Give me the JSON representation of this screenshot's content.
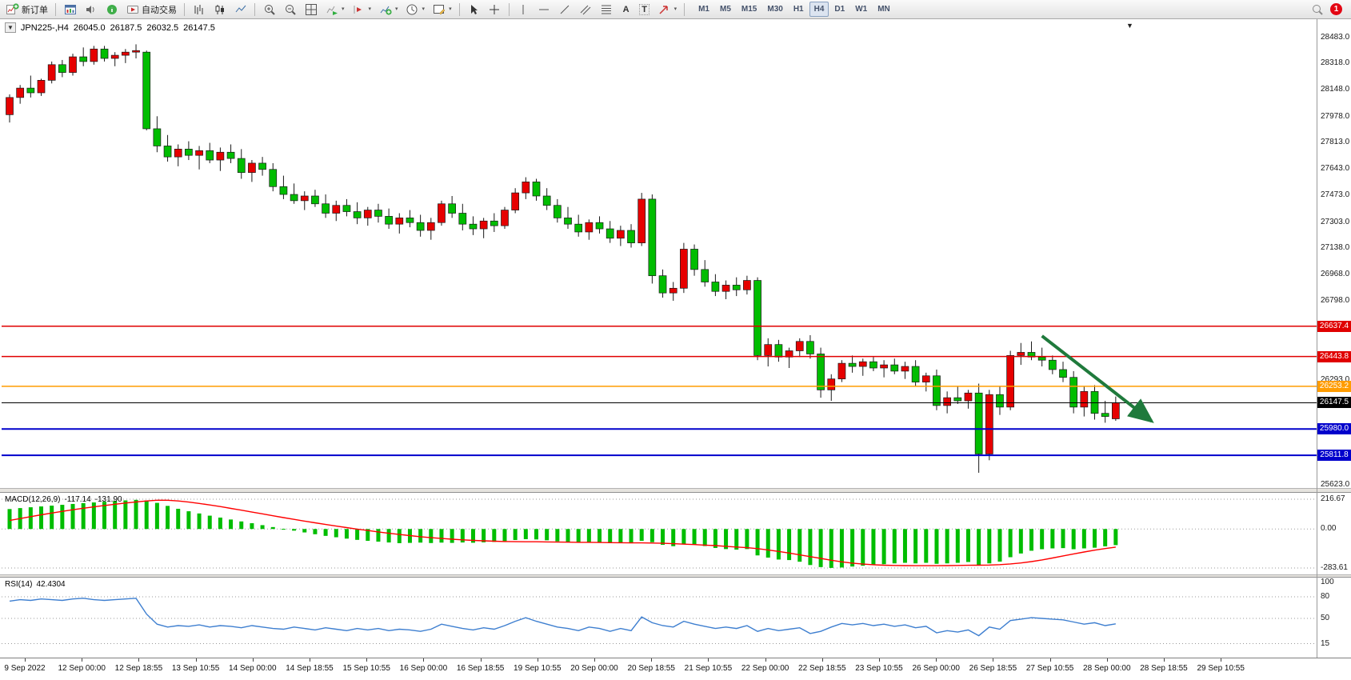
{
  "icons": {
    "caret_down": "▾",
    "dropdown_triangle": "▼"
  },
  "toolbar": {
    "buttons": {
      "new_order": "新订单",
      "autotrading": "自动交易",
      "text_tool": "A",
      "label_tool": "T"
    },
    "timeframes": [
      {
        "label": "M1",
        "active": false
      },
      {
        "label": "M5",
        "active": false
      },
      {
        "label": "M15",
        "active": false
      },
      {
        "label": "M30",
        "active": false
      },
      {
        "label": "H1",
        "active": false
      },
      {
        "label": "H4",
        "active": true
      },
      {
        "label": "D1",
        "active": false
      },
      {
        "label": "W1",
        "active": false
      },
      {
        "label": "MN",
        "active": false
      }
    ],
    "notification_count": "1"
  },
  "chart_header": {
    "symbol": "JPN225-,H4",
    "open": "26045.0",
    "high": "26187.5",
    "low": "26032.5",
    "close": "26147.5"
  },
  "chart_data": {
    "type": "candlestick",
    "symbol": "JPN225-",
    "timeframe": "H4",
    "y_axis": {
      "min": 25623.0,
      "max": 28483.0,
      "ticks": [
        "28483.0",
        "28318.0",
        "28148.0",
        "27978.0",
        "27813.0",
        "27643.0",
        "27473.0",
        "27303.0",
        "27138.0",
        "26968.0",
        "26798.0",
        "26293.0",
        "25623.0"
      ]
    },
    "x_labels": [
      "9 Sep 2022",
      "12 Sep 00:00",
      "12 Sep 18:55",
      "13 Sep 10:55",
      "14 Sep 00:00",
      "14 Sep 18:55",
      "15 Sep 10:55",
      "16 Sep 00:00",
      "16 Sep 18:55",
      "19 Sep 10:55",
      "20 Sep 00:00",
      "20 Sep 18:55",
      "21 Sep 10:55",
      "22 Sep 00:00",
      "22 Sep 18:55",
      "23 Sep 10:55",
      "26 Sep 00:00",
      "26 Sep 18:55",
      "27 Sep 10:55",
      "28 Sep 00:00",
      "28 Sep 18:55",
      "29 Sep 10:55"
    ],
    "colors": {
      "up": "#e60000",
      "down": "#00bd00",
      "wick": "#1a1a1a",
      "candle_border": "#1a1a1a",
      "macd_hist": "#00bd00",
      "macd_signal": "#ff0000",
      "rsi_line": "#3e7fd0",
      "arrow": "#1f7a3c"
    },
    "candles": [
      [
        27990,
        28120,
        27940,
        28100
      ],
      [
        28100,
        28180,
        28060,
        28160
      ],
      [
        28160,
        28240,
        28100,
        28130
      ],
      [
        28130,
        28220,
        28110,
        28210
      ],
      [
        28210,
        28330,
        28190,
        28310
      ],
      [
        28310,
        28340,
        28230,
        28260
      ],
      [
        28260,
        28380,
        28240,
        28360
      ],
      [
        28360,
        28420,
        28300,
        28330
      ],
      [
        28330,
        28430,
        28310,
        28410
      ],
      [
        28410,
        28430,
        28330,
        28350
      ],
      [
        28350,
        28390,
        28300,
        28370
      ],
      [
        28370,
        28410,
        28320,
        28390
      ],
      [
        28390,
        28440,
        28350,
        28400
      ],
      [
        28390,
        28400,
        27890,
        27900
      ],
      [
        27900,
        27980,
        27750,
        27790
      ],
      [
        27790,
        27860,
        27690,
        27720
      ],
      [
        27720,
        27800,
        27660,
        27770
      ],
      [
        27770,
        27820,
        27700,
        27730
      ],
      [
        27730,
        27790,
        27640,
        27760
      ],
      [
        27760,
        27810,
        27680,
        27700
      ],
      [
        27700,
        27780,
        27630,
        27750
      ],
      [
        27750,
        27800,
        27680,
        27710
      ],
      [
        27710,
        27770,
        27580,
        27620
      ],
      [
        27620,
        27700,
        27560,
        27680
      ],
      [
        27680,
        27720,
        27600,
        27640
      ],
      [
        27640,
        27680,
        27500,
        27530
      ],
      [
        27530,
        27600,
        27450,
        27480
      ],
      [
        27480,
        27550,
        27420,
        27440
      ],
      [
        27440,
        27500,
        27380,
        27470
      ],
      [
        27470,
        27510,
        27400,
        27420
      ],
      [
        27420,
        27480,
        27330,
        27360
      ],
      [
        27360,
        27440,
        27310,
        27410
      ],
      [
        27410,
        27450,
        27340,
        27370
      ],
      [
        27370,
        27430,
        27290,
        27330
      ],
      [
        27330,
        27400,
        27280,
        27380
      ],
      [
        27380,
        27420,
        27300,
        27340
      ],
      [
        27340,
        27390,
        27260,
        27290
      ],
      [
        27290,
        27360,
        27230,
        27330
      ],
      [
        27330,
        27380,
        27270,
        27300
      ],
      [
        27300,
        27350,
        27210,
        27250
      ],
      [
        27250,
        27330,
        27190,
        27300
      ],
      [
        27300,
        27440,
        27280,
        27420
      ],
      [
        27420,
        27470,
        27330,
        27360
      ],
      [
        27360,
        27420,
        27250,
        27290
      ],
      [
        27290,
        27340,
        27220,
        27260
      ],
      [
        27260,
        27330,
        27200,
        27310
      ],
      [
        27310,
        27360,
        27240,
        27280
      ],
      [
        27280,
        27400,
        27260,
        27380
      ],
      [
        27380,
        27520,
        27360,
        27490
      ],
      [
        27490,
        27590,
        27450,
        27560
      ],
      [
        27560,
        27580,
        27440,
        27470
      ],
      [
        27470,
        27520,
        27380,
        27410
      ],
      [
        27410,
        27450,
        27300,
        27330
      ],
      [
        27330,
        27400,
        27260,
        27290
      ],
      [
        27290,
        27350,
        27210,
        27240
      ],
      [
        27240,
        27320,
        27190,
        27300
      ],
      [
        27300,
        27340,
        27230,
        27260
      ],
      [
        27260,
        27310,
        27170,
        27200
      ],
      [
        27200,
        27280,
        27150,
        27250
      ],
      [
        27250,
        27290,
        27140,
        27170
      ],
      [
        27170,
        27490,
        27150,
        27450
      ],
      [
        27450,
        27480,
        26910,
        26960
      ],
      [
        26960,
        27000,
        26820,
        26850
      ],
      [
        26850,
        26920,
        26800,
        26880
      ],
      [
        26880,
        27170,
        26850,
        27130
      ],
      [
        27130,
        27160,
        26960,
        27000
      ],
      [
        27000,
        27060,
        26890,
        26920
      ],
      [
        26920,
        26970,
        26830,
        26860
      ],
      [
        26860,
        26930,
        26810,
        26900
      ],
      [
        26900,
        26950,
        26830,
        26870
      ],
      [
        26870,
        26960,
        26840,
        26930
      ],
      [
        26930,
        26950,
        26420,
        26450
      ],
      [
        26450,
        26560,
        26380,
        26520
      ],
      [
        26520,
        26550,
        26410,
        26440
      ],
      [
        26440,
        26500,
        26370,
        26480
      ],
      [
        26480,
        26560,
        26440,
        26540
      ],
      [
        26540,
        26580,
        26430,
        26460
      ],
      [
        26460,
        26500,
        26180,
        26230
      ],
      [
        26230,
        26330,
        26160,
        26300
      ],
      [
        26300,
        26420,
        26280,
        26400
      ],
      [
        26400,
        26450,
        26340,
        26380
      ],
      [
        26380,
        26430,
        26320,
        26410
      ],
      [
        26410,
        26440,
        26350,
        26370
      ],
      [
        26370,
        26420,
        26310,
        26390
      ],
      [
        26390,
        26430,
        26330,
        26350
      ],
      [
        26350,
        26410,
        26300,
        26380
      ],
      [
        26380,
        26420,
        26250,
        26280
      ],
      [
        26280,
        26340,
        26220,
        26320
      ],
      [
        26320,
        26360,
        26100,
        26130
      ],
      [
        26130,
        26220,
        26080,
        26180
      ],
      [
        26180,
        26250,
        26140,
        26160
      ],
      [
        26160,
        26230,
        26110,
        26210
      ],
      [
        26210,
        26270,
        25700,
        25820
      ],
      [
        25820,
        26230,
        25780,
        26200
      ],
      [
        26200,
        26250,
        26070,
        26120
      ],
      [
        26120,
        26480,
        26100,
        26450
      ],
      [
        26450,
        26530,
        26390,
        26470
      ],
      [
        26470,
        26540,
        26420,
        26440
      ],
      [
        26440,
        26500,
        26380,
        26420
      ],
      [
        26420,
        26450,
        26330,
        26360
      ],
      [
        26360,
        26410,
        26280,
        26310
      ],
      [
        26310,
        26350,
        26080,
        26120
      ],
      [
        26120,
        26250,
        26060,
        26220
      ],
      [
        26220,
        26260,
        26040,
        26080
      ],
      [
        26080,
        26160,
        26020,
        26060
      ],
      [
        26045,
        26187.5,
        26032.5,
        26147.5
      ]
    ],
    "hlines": [
      {
        "price": 26637.4,
        "label": "26637.4",
        "color": "#e00000",
        "width": 1.5
      },
      {
        "price": 26443.8,
        "label": "26443.8",
        "color": "#e00000",
        "width": 1.5
      },
      {
        "price": 26253.2,
        "label": "26253.2",
        "color": "#ff9c00",
        "width": 1.5
      },
      {
        "price": 26147.5,
        "label": "26147.5",
        "color": "#000000",
        "width": 1
      },
      {
        "price": 25980.0,
        "label": "25980.0",
        "color": "#0000cc",
        "width": 2
      },
      {
        "price": 25811.8,
        "label": "25811.8",
        "color": "#0000cc",
        "width": 2
      }
    ],
    "trend_arrow": {
      "from_slot": 98,
      "from_price": 26575,
      "to_slot": 108.4,
      "to_price": 26030
    },
    "indicators": {
      "macd": {
        "label": "MACD(12,26,9)",
        "value_main": "-117.14",
        "value_signal": "-131.90",
        "axis_labels": [
          "216.67",
          "0.00",
          "-283.61"
        ],
        "hist": [
          145,
          152,
          158,
          164,
          170,
          176,
          182,
          188,
          193,
          198,
          203,
          208,
          212,
          208,
          190,
          168,
          147,
          129,
          113,
          97,
          83,
          69,
          55,
          42,
          28,
          14,
          1,
          -12,
          -25,
          -38,
          -50,
          -60,
          -70,
          -79,
          -86,
          -92,
          -98,
          -103,
          -101,
          -99,
          -102,
          -99,
          -101,
          -98,
          -100,
          -97,
          -94,
          -88,
          -80,
          -74,
          -76,
          -82,
          -90,
          -96,
          -99,
          -97,
          -99,
          -103,
          -100,
          -104,
          -86,
          -96,
          -115,
          -125,
          -112,
          -114,
          -124,
          -138,
          -146,
          -150,
          -146,
          -192,
          -208,
          -222,
          -226,
          -238,
          -262,
          -277,
          -283,
          -280,
          -273,
          -267,
          -262,
          -256,
          -250,
          -246,
          -250,
          -246,
          -253,
          -250,
          -246,
          -240,
          -263,
          -250,
          -237,
          -205,
          -178,
          -158,
          -147,
          -141,
          -139,
          -147,
          -141,
          -136,
          -126,
          -117.14
        ],
        "signal": [
          62,
          76,
          90,
          103,
          116,
          128,
          140,
          151,
          161,
          171,
          180,
          189,
          197,
          204,
          209,
          209,
          204,
          196,
          186,
          175,
          163,
          150,
          137,
          123,
          110,
          96,
          83,
          70,
          57,
          45,
          33,
          21,
          10,
          -1,
          -11,
          -21,
          -31,
          -40,
          -48,
          -56,
          -63,
          -69,
          -74,
          -79,
          -83,
          -86,
          -89,
          -91,
          -92,
          -93,
          -93,
          -94,
          -95,
          -96,
          -97,
          -97,
          -98,
          -99,
          -100,
          -101,
          -101,
          -102,
          -104,
          -107,
          -110,
          -113,
          -117,
          -121,
          -126,
          -131,
          -136,
          -143,
          -152,
          -163,
          -175,
          -188,
          -201,
          -214,
          -227,
          -239,
          -248,
          -255,
          -260,
          -263,
          -265,
          -266,
          -267,
          -267,
          -267,
          -266,
          -265,
          -264,
          -263,
          -262,
          -259,
          -254,
          -247,
          -237,
          -225,
          -211,
          -196,
          -181,
          -167,
          -154,
          -142,
          -131.9
        ]
      },
      "rsi": {
        "label": "RSI(14)",
        "value": "42.4304",
        "axis_labels": [
          "100",
          "80",
          "50",
          "15"
        ],
        "levels": [
          80,
          50,
          15
        ],
        "values": [
          74,
          76,
          75,
          77,
          76,
          75,
          77,
          78,
          76,
          75,
          76,
          77,
          78,
          56,
          42,
          38,
          40,
          39,
          41,
          38,
          40,
          39,
          37,
          40,
          38,
          36,
          35,
          38,
          36,
          34,
          37,
          35,
          33,
          36,
          34,
          36,
          33,
          35,
          34,
          32,
          35,
          42,
          39,
          36,
          34,
          37,
          35,
          40,
          46,
          51,
          46,
          42,
          38,
          36,
          33,
          38,
          36,
          32,
          36,
          33,
          52,
          44,
          40,
          38,
          46,
          42,
          39,
          36,
          38,
          36,
          40,
          32,
          36,
          33,
          35,
          37,
          29,
          32,
          38,
          43,
          41,
          43,
          40,
          42,
          39,
          41,
          37,
          39,
          30,
          33,
          31,
          34,
          26,
          38,
          35,
          47,
          49,
          51,
          50,
          49,
          48,
          45,
          42,
          44,
          40,
          42.43
        ]
      }
    }
  }
}
